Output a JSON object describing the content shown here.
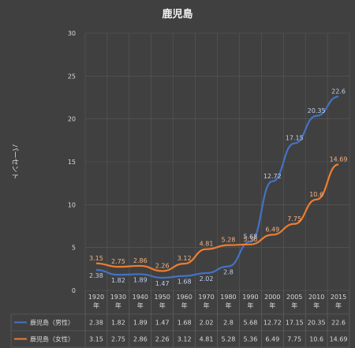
{
  "chart_data": {
    "type": "line",
    "title": "鹿児島",
    "ylabel": "パーセント",
    "categories": [
      "1920年",
      "1930年",
      "1940年",
      "1950年",
      "1960年",
      "1970年",
      "1980年",
      "1990年",
      "2000年",
      "2005年",
      "2010年",
      "2015年"
    ],
    "ylim": [
      0,
      30
    ],
    "yticks": [
      0,
      5,
      10,
      15,
      20,
      25,
      30
    ],
    "grid": true,
    "legend": "data-table",
    "series": [
      {
        "name": "鹿児島（男性）",
        "color": "#4472c4",
        "values": [
          2.38,
          1.82,
          1.89,
          1.47,
          1.68,
          2.02,
          2.8,
          5.68,
          12.72,
          17.15,
          20.35,
          22.6
        ]
      },
      {
        "name": "鹿児島（女性）",
        "color": "#ed7d31",
        "values": [
          3.15,
          2.75,
          2.86,
          2.26,
          3.12,
          4.81,
          5.28,
          5.36,
          6.49,
          7.75,
          10.6,
          14.69
        ]
      }
    ]
  }
}
